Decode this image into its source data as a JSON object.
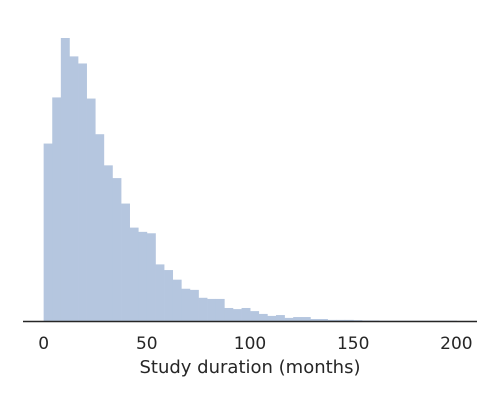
{
  "chart_data": {
    "type": "bar",
    "subtype": "histogram",
    "title": "",
    "xlabel": "Study duration (months)",
    "ylabel": "",
    "xlim": [
      -10,
      210
    ],
    "ylim": [
      0,
      1.0
    ],
    "x_ticks": [
      0,
      50,
      100,
      150,
      200
    ],
    "x_tick_labels": [
      "0",
      "50",
      "100",
      "150",
      "200"
    ],
    "y_ticks": [],
    "grid": false,
    "legend": "none",
    "bin_width": 4.17,
    "bins_start": 0,
    "values": [
      0.627,
      0.79,
      1.0,
      0.935,
      0.91,
      0.786,
      0.66,
      0.55,
      0.505,
      0.415,
      0.33,
      0.315,
      0.31,
      0.2,
      0.18,
      0.146,
      0.114,
      0.11,
      0.082,
      0.078,
      0.078,
      0.046,
      0.042,
      0.046,
      0.035,
      0.025,
      0.018,
      0.021,
      0.011,
      0.014,
      0.014,
      0.007,
      0.007,
      0.004,
      0.004,
      0.004,
      0.003,
      0.002,
      0.002,
      0.001,
      0.001,
      0.001,
      0.001,
      0.001,
      0.001,
      0.001,
      0.001,
      0.001
    ],
    "colors": {
      "bar": "#b5c6df",
      "axis": "#262626",
      "text": "#262626"
    }
  }
}
